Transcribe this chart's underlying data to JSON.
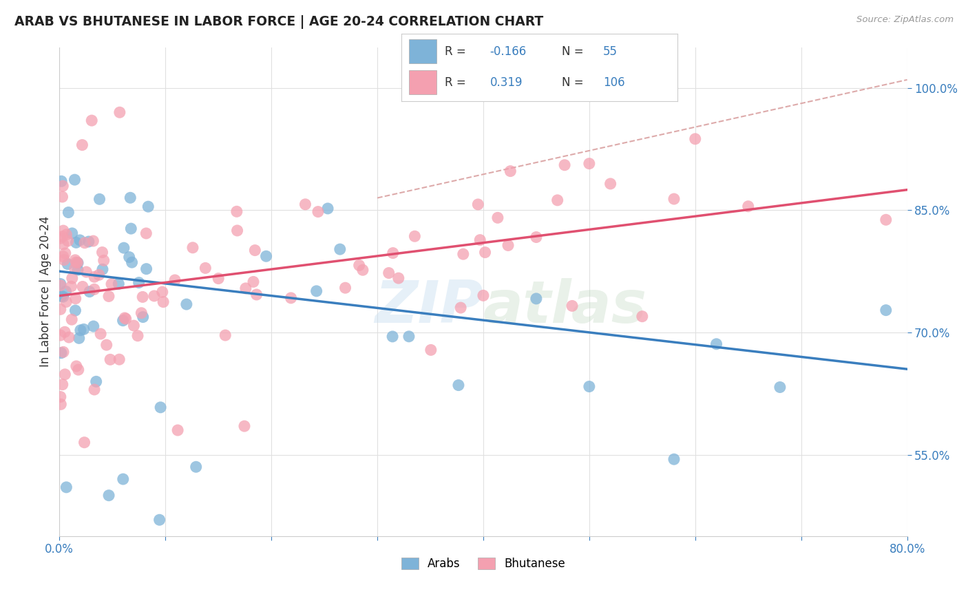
{
  "title": "ARAB VS BHUTANESE IN LABOR FORCE | AGE 20-24 CORRELATION CHART",
  "source": "Source: ZipAtlas.com",
  "ylabel": "In Labor Force | Age 20-24",
  "xlim": [
    0.0,
    0.8
  ],
  "ylim": [
    0.45,
    1.05
  ],
  "xticks": [
    0.0,
    0.1,
    0.2,
    0.3,
    0.4,
    0.5,
    0.6,
    0.7,
    0.8
  ],
  "xticklabels": [
    "0.0%",
    "",
    "",
    "",
    "",
    "",
    "",
    "",
    "80.0%"
  ],
  "ytick_positions": [
    0.55,
    0.7,
    0.85,
    1.0
  ],
  "ytick_labels": [
    "55.0%",
    "70.0%",
    "85.0%",
    "100.0%"
  ],
  "arab_R": -0.166,
  "arab_N": 55,
  "bhutanese_R": 0.319,
  "bhutanese_N": 106,
  "arab_color": "#7eb3d8",
  "bhutanese_color": "#f4a0b0",
  "arab_line_color": "#3a7ebe",
  "bhutanese_line_color": "#e05070",
  "ref_line_color": "#ddaaaa",
  "legend_arab_label": "Arabs",
  "legend_bhutanese_label": "Bhutanese",
  "arab_line_x0": 0.0,
  "arab_line_y0": 0.775,
  "arab_line_x1": 0.8,
  "arab_line_y1": 0.655,
  "bhut_line_x0": 0.0,
  "bhut_line_y0": 0.745,
  "bhut_line_x1": 0.8,
  "bhut_line_y1": 0.875,
  "ref_line_x0": 0.3,
  "ref_line_y0": 0.865,
  "ref_line_x1": 0.8,
  "ref_line_y1": 1.01
}
